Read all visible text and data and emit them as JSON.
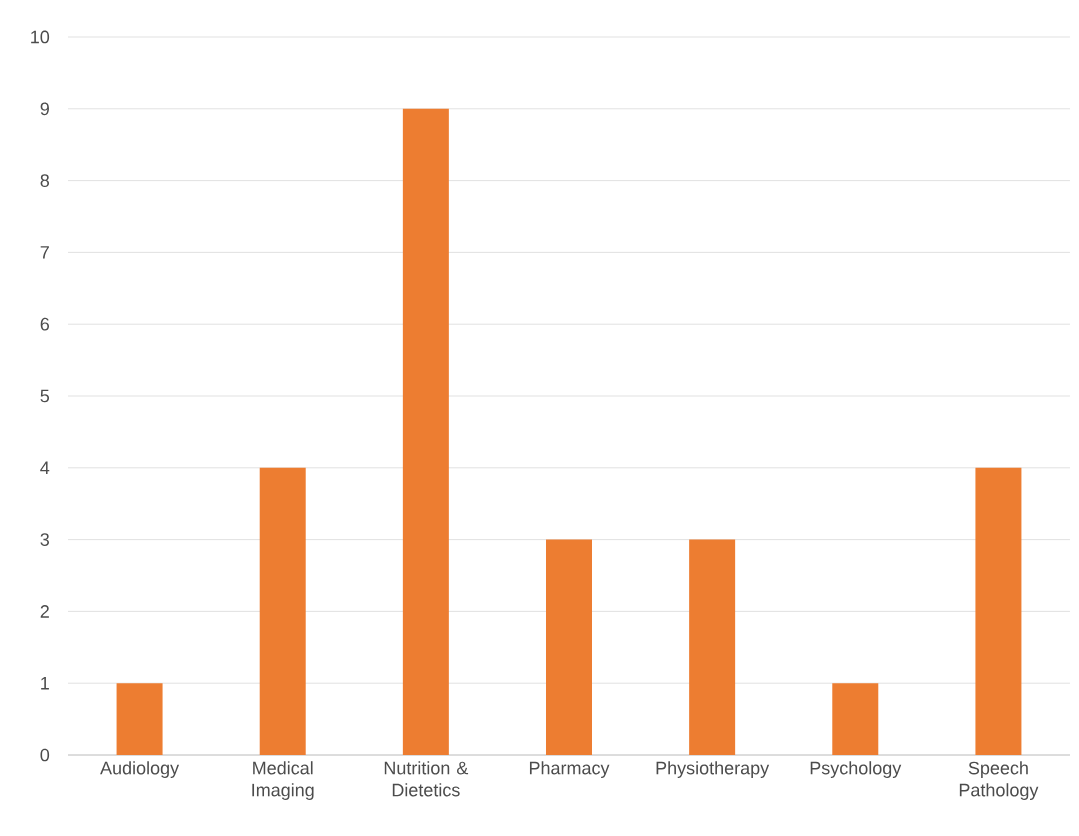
{
  "chart_data": {
    "type": "bar",
    "categories": [
      "Audiology",
      "Medical Imaging",
      "Nutrition & Dietetics",
      "Pharmacy",
      "Physiotherapy",
      "Psychology",
      "Speech Pathology"
    ],
    "values": [
      1,
      4,
      9,
      3,
      3,
      1,
      4
    ],
    "color": "#ed7d31",
    "ylim": [
      0,
      10
    ],
    "yticks": [
      0,
      1,
      2,
      3,
      4,
      5,
      6,
      7,
      8,
      9,
      10
    ],
    "grid": "y"
  }
}
